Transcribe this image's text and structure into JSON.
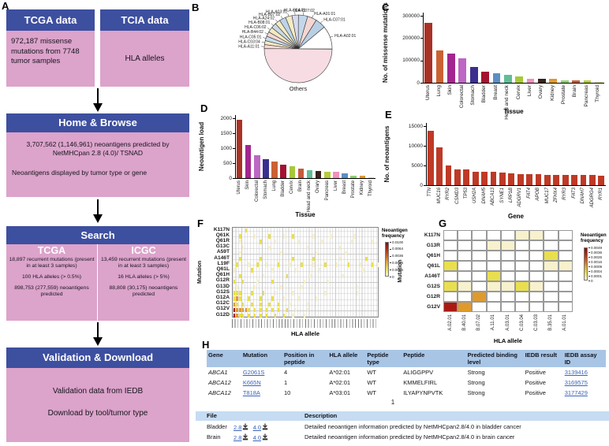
{
  "panel_letters": {
    "a": "A",
    "b": "B",
    "c": "C",
    "d": "D",
    "e": "E",
    "f": "F",
    "g": "G",
    "h": "H"
  },
  "flowchart": {
    "colors": {
      "header": "#3d4f9f",
      "body": "#dca3cb"
    },
    "tcga_box": {
      "title": "TCGA data",
      "body": "972,187 missense mutations from 7748 tumor samples"
    },
    "tcia_box": {
      "title": "TCIA data",
      "body": "HLA alleles"
    },
    "home_box": {
      "title": "Home & Browse",
      "line1": "3,707,562 (1,146,961) neoantigens predicted by NetMHCpan 2.8 (4.0)/ TSNAD",
      "line2": "Neoantigens displayed by tumor type or gene"
    },
    "search_box": {
      "title": "Search",
      "tcga": {
        "name": "TCGA",
        "lines": [
          "18,897 recurrent mutations (present in at least 3 samples)",
          "100 HLA alleles (> 0.5%)",
          "898,753 (277,559) neoantigens predicted"
        ]
      },
      "icgc": {
        "name": "ICGC",
        "lines": [
          "13,459 recurrent mutations (present in at least 3 samples)",
          "16 HLA alleles (> 5%)",
          "88,808 (30,175) neoantigens predicted"
        ]
      }
    },
    "validation_box": {
      "title": "Validation & Download",
      "line1": "Validation data from IEDB",
      "line2": "Download by tool/tumor type"
    }
  },
  "chart_data": [
    {
      "id": "pie-b",
      "type": "pie",
      "labels": [
        "HLA-A02:01",
        "HLA-C07:01",
        "HLA-A01:01",
        "HLA-C07:02",
        "HLA-C04:01",
        "HLA-A03:01",
        "HLA-B07:02",
        "HLA-A24:02",
        "HLA-B08:01",
        "HLA-C06:02",
        "HLA-B44:02",
        "HLA-C05:01",
        "HLA-C03:04",
        "HLA-A11:01",
        "Others"
      ],
      "values": [
        11.1,
        5.0,
        4.4,
        4.4,
        3.1,
        3.1,
        3.1,
        2.5,
        2.5,
        2.5,
        2.2,
        2.2,
        1.9,
        1.9,
        50.0
      ],
      "colors": [
        "#ffffff",
        "#b9cfe4",
        "#f6d6d2",
        "#c3d7ea",
        "#d9d9ef",
        "#f3ecc3",
        "#bdd3e8",
        "#f3ecc3",
        "#ccd9e6",
        "#f1e9c0",
        "#f4d8d4",
        "#c9dcec",
        "#f3ecc3",
        "#f6d9d6",
        "#f7dde3"
      ],
      "note": "percentages estimated from slice angles; Others occupies bottom half"
    },
    {
      "id": "bar-c",
      "type": "bar",
      "title": "",
      "xlabel": "Tissue",
      "ylabel": "No. of missense mutations",
      "yticks": [
        0,
        100000,
        200000,
        300000
      ],
      "ylim": [
        0,
        300000
      ],
      "categories": [
        "Uterus",
        "Lung",
        "Skin",
        "Colorectal",
        "Stomach",
        "Bladder",
        "Breast",
        "Head and neck",
        "Cervix",
        "Liver",
        "Ovary",
        "Kidney",
        "Prostate",
        "Brain",
        "Pancreas",
        "Thyroid"
      ],
      "values": [
        270000,
        145000,
        130000,
        110000,
        70000,
        50000,
        42000,
        35000,
        30000,
        18000,
        18000,
        18000,
        12000,
        11000,
        10000,
        3000
      ],
      "colors": [
        "#a93226",
        "#cb6133",
        "#a3258f",
        "#bd66c4",
        "#3a2f8f",
        "#a31231",
        "#5b8ec4",
        "#62bd96",
        "#a6c939",
        "#f090bb",
        "#38231a",
        "#e0992f",
        "#8ed072",
        "#c65a3b",
        "#b4cc3c",
        "#d9e6a8"
      ]
    },
    {
      "id": "bar-d",
      "type": "bar",
      "title": "",
      "xlabel": "Tissue",
      "ylabel": "Neoantigen load",
      "yticks": [
        0,
        500,
        1000,
        1500,
        2000
      ],
      "ylim": [
        0,
        2000
      ],
      "categories": [
        "Uterus",
        "Skin",
        "Colorectal",
        "Stomach",
        "Lung",
        "Bladder",
        "Cervix",
        "Brain",
        "Head and neck",
        "Ovary",
        "Pancreas",
        "Liver",
        "Breast",
        "Prostate",
        "Kidney",
        "Thyroid"
      ],
      "values": [
        1950,
        1100,
        760,
        640,
        560,
        450,
        390,
        310,
        260,
        230,
        210,
        200,
        150,
        90,
        90,
        20
      ],
      "colors": [
        "#a93226",
        "#a3258f",
        "#bd66c4",
        "#3a2f8f",
        "#cb6133",
        "#a31231",
        "#a6c939",
        "#c65a3b",
        "#62bd96",
        "#38231a",
        "#b4cc3c",
        "#f090bb",
        "#5b8ec4",
        "#8ed072",
        "#e0992f",
        "#d9e6a8"
      ]
    },
    {
      "id": "bar-e",
      "type": "bar",
      "title": "",
      "xlabel": "Gene",
      "ylabel": "No. of neoantigens",
      "yticks": [
        0,
        5000,
        10000,
        15000
      ],
      "ylim": [
        0,
        15000
      ],
      "italic_labels": true,
      "categories": [
        "TTN",
        "MUC16",
        "RYR2",
        "CSMD3",
        "TP53",
        "USH2A",
        "DNAH5",
        "ABCA13",
        "SYNE1",
        "LRP1B",
        "ADGRV1",
        "FAT4",
        "APOB",
        "MUC17",
        "ZFHX4",
        "RYR3",
        "FAT3",
        "DNAH7",
        "ADGRG4",
        "RYR1"
      ],
      "values": [
        13800,
        9600,
        5000,
        4100,
        4000,
        3500,
        3450,
        3350,
        3300,
        3000,
        2850,
        2800,
        2750,
        2700,
        2650,
        2650,
        2600,
        2600,
        2550,
        2450
      ],
      "bar_color": "#be3a26"
    },
    {
      "id": "heat-f",
      "type": "heatmap",
      "ylabel": "Mutation",
      "xlabel": "HLA allele",
      "rows": [
        "K117N",
        "Q61K",
        "Q61R",
        "G13C",
        "A59T",
        "A146T",
        "L19F",
        "Q61L",
        "Q61H",
        "G12R",
        "G13D",
        "G12S",
        "G12A",
        "G12C",
        "G12V",
        "G12D"
      ],
      "n_cols": 50,
      "x_labels_note": "~50 HLA allele codes, rendered too small to be legible",
      "legend": {
        "title": "Neoantigen frequency",
        "ticks": [
          "0.0100",
          "0.0064",
          "0.0036",
          "0.0016",
          "0.0004",
          "0"
        ]
      },
      "level_colors": {
        "1": "#f7f1cd",
        "2": "#e9df4e",
        "3": "#e09a2c",
        "4": "#ab1a12"
      },
      "cells": {
        "K117N": [
          [
            4,
            2
          ]
        ],
        "Q61K": [
          [
            2,
            2
          ],
          [
            7,
            1
          ],
          [
            12,
            2
          ],
          [
            17,
            1
          ],
          [
            20,
            2
          ],
          [
            27,
            1
          ],
          [
            33,
            1
          ],
          [
            41,
            1
          ]
        ],
        "Q61R": [
          [
            2,
            1
          ],
          [
            9,
            2
          ],
          [
            14,
            1
          ],
          [
            22,
            1
          ],
          [
            30,
            1
          ],
          [
            40,
            1
          ],
          [
            47,
            1
          ]
        ],
        "G13C": [
          [
            3,
            1
          ],
          [
            12,
            1
          ],
          [
            25,
            1
          ],
          [
            36,
            1
          ]
        ],
        "A59T": [
          [
            2,
            1
          ],
          [
            16,
            1
          ],
          [
            28,
            1
          ],
          [
            38,
            1
          ]
        ],
        "A146T": [
          [
            2,
            2
          ],
          [
            9,
            2
          ],
          [
            20,
            2
          ],
          [
            27,
            2
          ],
          [
            36,
            1
          ],
          [
            45,
            2
          ]
        ],
        "L19F": [
          [
            1,
            2
          ],
          [
            5,
            1
          ],
          [
            8,
            2
          ],
          [
            11,
            1
          ],
          [
            15,
            2
          ],
          [
            19,
            1
          ],
          [
            23,
            2
          ],
          [
            27,
            1
          ],
          [
            31,
            2
          ],
          [
            35,
            1
          ],
          [
            39,
            2
          ],
          [
            43,
            1
          ],
          [
            47,
            2
          ],
          [
            49,
            1
          ]
        ],
        "Q61L": [
          [
            0,
            1
          ],
          [
            6,
            2
          ],
          [
            13,
            1
          ],
          [
            21,
            1
          ],
          [
            29,
            1
          ],
          [
            44,
            1
          ]
        ],
        "Q61H": [
          [
            2,
            2
          ],
          [
            10,
            1
          ],
          [
            18,
            2
          ],
          [
            26,
            1
          ],
          [
            37,
            1
          ]
        ],
        "G12R": [
          [
            0,
            2
          ],
          [
            3,
            2
          ],
          [
            8,
            1
          ],
          [
            13,
            2
          ],
          [
            24,
            1
          ],
          [
            32,
            1
          ]
        ],
        "G13D": [
          [
            1,
            1
          ],
          [
            7,
            1
          ],
          [
            16,
            1
          ],
          [
            23,
            1
          ],
          [
            42,
            1
          ]
        ],
        "G12S": [
          [
            0,
            2
          ],
          [
            1,
            2
          ],
          [
            2,
            2
          ],
          [
            6,
            2
          ],
          [
            10,
            2
          ],
          [
            14,
            1
          ],
          [
            20,
            1
          ],
          [
            31,
            1
          ],
          [
            42,
            1
          ]
        ],
        "G12A": [
          [
            0,
            2
          ],
          [
            1,
            3
          ],
          [
            2,
            2
          ],
          [
            5,
            2
          ],
          [
            9,
            2
          ],
          [
            13,
            2
          ],
          [
            17,
            1
          ],
          [
            22,
            1
          ],
          [
            28,
            1
          ]
        ],
        "G12C": [
          [
            0,
            3
          ],
          [
            1,
            2
          ],
          [
            3,
            2
          ],
          [
            6,
            2
          ],
          [
            9,
            2
          ],
          [
            12,
            2
          ],
          [
            15,
            2
          ],
          [
            19,
            1
          ],
          [
            25,
            1
          ]
        ],
        "G12V": [
          [
            0,
            4
          ],
          [
            1,
            3
          ],
          [
            2,
            3
          ],
          [
            3,
            3
          ],
          [
            4,
            3
          ],
          [
            5,
            2
          ],
          [
            7,
            2
          ],
          [
            9,
            2
          ],
          [
            11,
            2
          ],
          [
            13,
            2
          ],
          [
            15,
            2
          ],
          [
            18,
            2
          ],
          [
            21,
            1
          ],
          [
            25,
            1
          ]
        ],
        "G12D": [
          [
            0,
            4
          ],
          [
            1,
            3
          ],
          [
            2,
            2
          ],
          [
            3,
            2
          ],
          [
            5,
            2
          ],
          [
            7,
            2
          ],
          [
            9,
            2
          ],
          [
            11,
            2
          ],
          [
            14,
            2
          ],
          [
            17,
            2
          ],
          [
            20,
            1
          ],
          [
            24,
            1
          ]
        ]
      }
    },
    {
      "id": "heat-g",
      "type": "heatmap",
      "ylabel": "Mutation",
      "xlabel": "HLA allele",
      "rows": [
        "K117N",
        "G13R",
        "Q61H",
        "Q61L",
        "A146T",
        "G12S",
        "G12R",
        "G12V"
      ],
      "cols": [
        "A.02.01",
        "B.40.01",
        "B.07.02",
        "A.11.01",
        "A.03.01",
        "C.03.04",
        "C.03.03",
        "B.35.01",
        "A.01.01"
      ],
      "legend": {
        "title": "Neoantigen frequency",
        "ticks": [
          "0.0049",
          "0.0036",
          "0.0025",
          "0.0016",
          "0.0009",
          "0.0004",
          "0.0001",
          "0"
        ]
      },
      "level_colors": {
        "1": "#f7f1cd",
        "2": "#e9df4e",
        "3": "#e09a2c",
        "4": "#ab1a12"
      },
      "matrix": [
        [
          0,
          0,
          0,
          0,
          0,
          1,
          1,
          0,
          0
        ],
        [
          0,
          0,
          0,
          1,
          1,
          0,
          0,
          0,
          0
        ],
        [
          0,
          0,
          0,
          0,
          0,
          0,
          0,
          2,
          0
        ],
        [
          2,
          0,
          0,
          0,
          0,
          0,
          0,
          1,
          1
        ],
        [
          0,
          0,
          0,
          2,
          0,
          0,
          0,
          0,
          0
        ],
        [
          2,
          1,
          0,
          1,
          1,
          2,
          1,
          0,
          0
        ],
        [
          0,
          0,
          3,
          0,
          0,
          0,
          0,
          0,
          0
        ],
        [
          4,
          3,
          0,
          0,
          0,
          0,
          0,
          0,
          0
        ]
      ]
    }
  ],
  "result_table": {
    "headers": [
      "Gene",
      "Mutation",
      "Position in peptide",
      "HLA allele",
      "Peptide type",
      "Peptide",
      "Predicted binding level",
      "IEDB result",
      "IEDB assay ID"
    ],
    "rows": [
      [
        "ABCA1",
        "G2061S",
        "4",
        "A*02:01",
        "WT",
        "ALIGGPPV",
        "Strong",
        "Positive",
        "3139416"
      ],
      [
        "ABCA12",
        "K665N",
        "1",
        "A*02:01",
        "WT",
        "KMMELFIRL",
        "Strong",
        "Positive",
        "3169575"
      ],
      [
        "ABCA12",
        "T818A",
        "10",
        "A*03:01",
        "WT",
        "ILYAPYNPVTK",
        "Strong",
        "Positive",
        "3177429"
      ]
    ],
    "pagination": "1"
  },
  "file_table": {
    "headers": {
      "file": "File",
      "description": "Description"
    },
    "rows": [
      {
        "name": "Bladder",
        "versions": [
          "2.8",
          "4.0"
        ],
        "description": "Detailed neoantigen information predicted by NetMHCpan2.8/4.0 in bladder cancer"
      },
      {
        "name": "Brain",
        "versions": [
          "2.8",
          "4.0"
        ],
        "description": "Detailed neoantigen information predicted by NetMHCpan2.8/4.0 in brain cancer"
      }
    ]
  }
}
